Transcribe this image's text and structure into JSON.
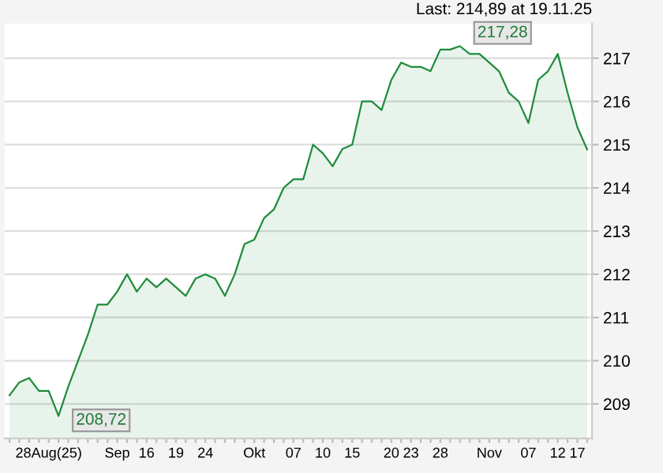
{
  "chart_data": {
    "type": "area",
    "categories": [
      null,
      null,
      null,
      null,
      "28Aug(25)",
      null,
      null,
      null,
      null,
      null,
      null,
      "Sep",
      null,
      null,
      "16",
      null,
      null,
      "19",
      null,
      null,
      "24",
      null,
      null,
      null,
      null,
      "Okt",
      null,
      null,
      null,
      "07",
      null,
      null,
      "10",
      null,
      null,
      "15",
      null,
      null,
      null,
      "20",
      null,
      "23",
      null,
      null,
      "28",
      null,
      null,
      null,
      null,
      "Nov",
      null,
      null,
      null,
      "07",
      null,
      null,
      "12",
      null,
      "17",
      null
    ],
    "series": [
      {
        "color": "#1e8c3c",
        "values": [
          209.2,
          209.5,
          209.6,
          209.3,
          209.3,
          208.72,
          209.4,
          210.0,
          210.6,
          211.3,
          211.3,
          211.6,
          212.0,
          211.6,
          211.9,
          211.7,
          211.9,
          211.7,
          211.5,
          211.9,
          212.0,
          211.9,
          211.5,
          212.0,
          212.7,
          212.8,
          213.3,
          213.5,
          214.0,
          214.2,
          214.2,
          215.0,
          214.8,
          214.5,
          214.9,
          215.0,
          216.0,
          216.0,
          215.8,
          216.5,
          216.9,
          216.8,
          216.8,
          216.7,
          217.2,
          217.2,
          217.28,
          217.1,
          217.1,
          216.9,
          216.7,
          216.2,
          216.0,
          215.5,
          216.5,
          216.7,
          217.1,
          216.2,
          215.4,
          214.89
        ],
        "value_labels": [
          null,
          null,
          null,
          null,
          null,
          "208,72",
          null,
          null,
          null,
          null,
          null,
          null,
          null,
          null,
          null,
          null,
          null,
          null,
          null,
          null,
          null,
          null,
          null,
          null,
          null,
          null,
          null,
          null,
          null,
          null,
          null,
          null,
          null,
          null,
          null,
          null,
          null,
          null,
          null,
          null,
          null,
          null,
          null,
          null,
          null,
          null,
          "217,28",
          null,
          null,
          null,
          null,
          null,
          null,
          null,
          null,
          null,
          null,
          null,
          null,
          null
        ]
      }
    ],
    "ylim": [
      208.2,
      217.8
    ],
    "yticks": [
      209,
      210,
      211,
      212,
      213,
      214,
      215,
      216,
      217
    ],
    "grid": "y",
    "annotations": [
      "Last: 214,89 at 19.11.25"
    ]
  }
}
